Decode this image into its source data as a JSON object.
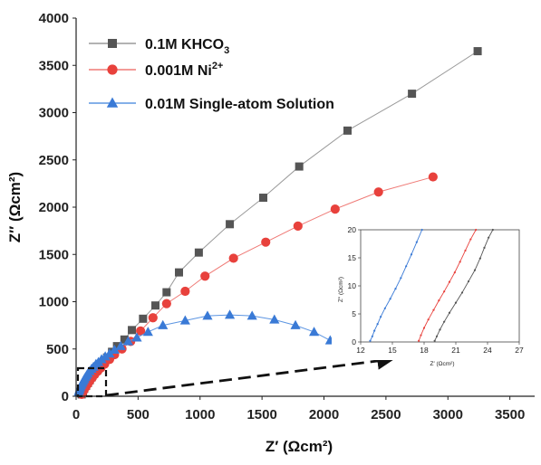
{
  "chart_data": [
    {
      "type": "scatter",
      "role": "main",
      "xlabel": "Z′ (Ωcm²)",
      "ylabel": "Z″ (Ωcm²)",
      "xlim": [
        0,
        3700
      ],
      "ylim": [
        0,
        4000
      ],
      "xticks": [
        0,
        500,
        1000,
        1500,
        2000,
        2500,
        3000,
        3500
      ],
      "yticks": [
        0,
        500,
        1000,
        1500,
        2000,
        2500,
        3000,
        3500,
        4000
      ],
      "grid": false,
      "legend_position": "top-left",
      "series": [
        {
          "name": "0.1M KHCO₃",
          "name_main": "0.1M KHCO",
          "name_sub": "3",
          "marker": "square",
          "color": "#555555",
          "line_color": "#9a9a9a",
          "x": [
            45,
            55,
            65,
            80,
            95,
            110,
            125,
            145,
            165,
            190,
            220,
            250,
            290,
            330,
            390,
            450,
            540,
            640,
            730,
            830,
            990,
            1240,
            1510,
            1800,
            2190,
            2710,
            3240
          ],
          "y": [
            20,
            50,
            80,
            110,
            140,
            170,
            200,
            240,
            270,
            310,
            360,
            410,
            470,
            530,
            600,
            700,
            820,
            960,
            1100,
            1310,
            1520,
            1820,
            2100,
            2430,
            2810,
            3200,
            3650
          ]
        },
        {
          "name": "0.001M Ni²⁺",
          "name_main": "0.001M Ni",
          "name_sup": "2+",
          "marker": "circle",
          "color": "#e8413c",
          "line_color": "#ef7a76",
          "x": [
            45,
            55,
            65,
            80,
            95,
            110,
            130,
            150,
            175,
            200,
            230,
            270,
            310,
            370,
            440,
            520,
            620,
            730,
            880,
            1040,
            1270,
            1530,
            1790,
            2090,
            2440,
            2880
          ],
          "y": [
            20,
            45,
            70,
            100,
            130,
            160,
            195,
            230,
            265,
            300,
            340,
            390,
            440,
            500,
            580,
            690,
            830,
            980,
            1110,
            1270,
            1460,
            1630,
            1800,
            1980,
            2160,
            2320
          ]
        },
        {
          "name": "0.01M Single-atom Solution",
          "marker": "triangle",
          "color": "#3a7ad6",
          "line_color": "#5c95e2",
          "x": [
            20,
            25,
            30,
            35,
            42,
            50,
            58,
            66,
            75,
            85,
            95,
            110,
            125,
            140,
            160,
            180,
            205,
            235,
            270,
            310,
            360,
            420,
            490,
            580,
            700,
            880,
            1060,
            1240,
            1420,
            1600,
            1770,
            1920,
            2050,
            2130
          ],
          "y": [
            40,
            60,
            80,
            100,
            120,
            140,
            160,
            180,
            200,
            220,
            240,
            265,
            290,
            310,
            340,
            360,
            390,
            420,
            450,
            490,
            530,
            580,
            620,
            680,
            750,
            800,
            850,
            860,
            850,
            810,
            750,
            680,
            590,
            510
          ]
        }
      ]
    },
    {
      "type": "line",
      "role": "inset",
      "xlabel": "Z′ (Ωcm²)",
      "ylabel": "Z″ (Ωcm²)",
      "xlim": [
        12,
        27
      ],
      "ylim": [
        0,
        20
      ],
      "xticks": [
        12,
        15,
        18,
        21,
        24,
        27
      ],
      "yticks": [
        0,
        5,
        10,
        15,
        20
      ],
      "series": [
        {
          "name": "0.01M Single-atom Solution",
          "color": "#3a7ad6",
          "x": [
            12.9,
            13.1,
            13.3,
            13.6,
            13.9,
            14.3,
            14.8,
            15.3,
            15.8,
            16.3,
            16.8,
            17.3,
            17.8
          ],
          "y": [
            0.2,
            1.0,
            2.0,
            3.2,
            4.5,
            6.0,
            7.7,
            9.5,
            11.4,
            13.5,
            15.6,
            17.8,
            20.0
          ]
        },
        {
          "name": "0.001M Ni²⁺",
          "color": "#e8413c",
          "x": [
            17.5,
            17.7,
            18.0,
            18.4,
            18.9,
            19.4,
            19.9,
            20.4,
            20.9,
            21.4,
            21.9,
            22.4,
            22.9
          ],
          "y": [
            0.2,
            1.2,
            2.5,
            4.0,
            5.7,
            7.4,
            9.0,
            10.7,
            12.4,
            14.3,
            16.3,
            18.3,
            20.0
          ]
        },
        {
          "name": "0.1M KHCO₃",
          "color": "#555555",
          "x": [
            19.0,
            19.2,
            19.5,
            19.9,
            20.4,
            21.0,
            21.6,
            22.2,
            22.8,
            23.3,
            23.7,
            24.1,
            24.5
          ],
          "y": [
            0.2,
            1.0,
            2.2,
            3.6,
            5.2,
            7.0,
            8.8,
            10.8,
            12.8,
            14.9,
            16.8,
            18.6,
            20.0
          ]
        }
      ]
    }
  ]
}
